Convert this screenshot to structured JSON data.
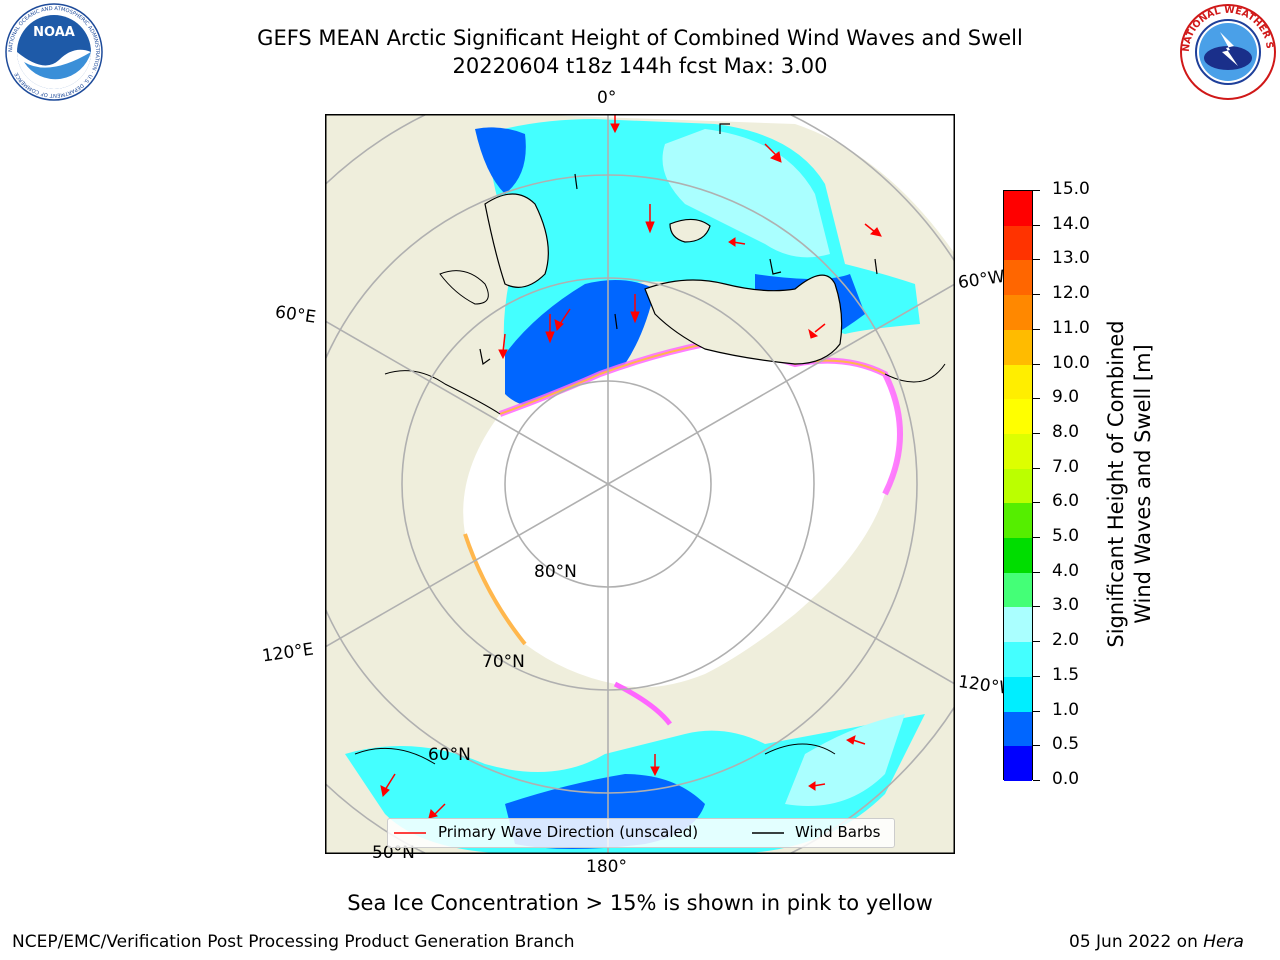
{
  "header": {
    "title_line1": "GEFS MEAN Arctic Significant Height of Combined Wind Waves and Swell",
    "title_line2": "20220604 t18z 144h fcst   Max: 3.00"
  },
  "logos": {
    "left": {
      "name": "noaa-logo",
      "text": "NOAA",
      "ring_text": "NATIONAL OCEANIC AND ATMOSPHERIC ADMINISTRATION · U.S. DEPARTMENT OF COMMERCE"
    },
    "right": {
      "name": "nws-logo",
      "ring_text": "NATIONAL WEATHER SERVICE"
    }
  },
  "map": {
    "labels": {
      "lon_0": "0°",
      "lon_60e": "60°E",
      "lon_60w": "60°W",
      "lon_120e": "120°E",
      "lon_120w": "120°W",
      "lon_180": "180°",
      "lat_80": "80°N",
      "lat_70": "70°N",
      "lat_60": "60°N",
      "lat_50": "50°N"
    },
    "colors": {
      "land": "#efeedc",
      "ice": "#ffffff",
      "grid": "#b0b0b0",
      "wave_arrow": "#ff0000",
      "wind_barb": "#000000"
    }
  },
  "legend": {
    "primary_wave": "Primary Wave Direction (unscaled)",
    "wind_barbs": "Wind Barbs"
  },
  "colorbar": {
    "label_line1": "Significant Height of Combined",
    "label_line2": "Wind Waves and Swell [m]",
    "ticks": [
      "0.0",
      "0.5",
      "1.0",
      "1.5",
      "2.0",
      "3.0",
      "4.0",
      "5.0",
      "6.0",
      "7.0",
      "8.0",
      "9.0",
      "10.0",
      "11.0",
      "12.0",
      "13.0",
      "14.0",
      "15.0"
    ],
    "colors": [
      "#0000ff",
      "#0066ff",
      "#00eeff",
      "#44ffff",
      "#aaffff",
      "#44ff77",
      "#00dd00",
      "#55ee00",
      "#bbff00",
      "#ddff00",
      "#ffff00",
      "#ffee00",
      "#ffbb00",
      "#ff8800",
      "#ff6600",
      "#ff3300",
      "#ff0000"
    ]
  },
  "footer": {
    "note": "Sea Ice Concentration > 15% is shown in pink to yellow",
    "credit": "NCEP/EMC/Verification Post Processing Product Generation Branch",
    "date": "05 Jun 2022 on ",
    "host": "Hera"
  }
}
